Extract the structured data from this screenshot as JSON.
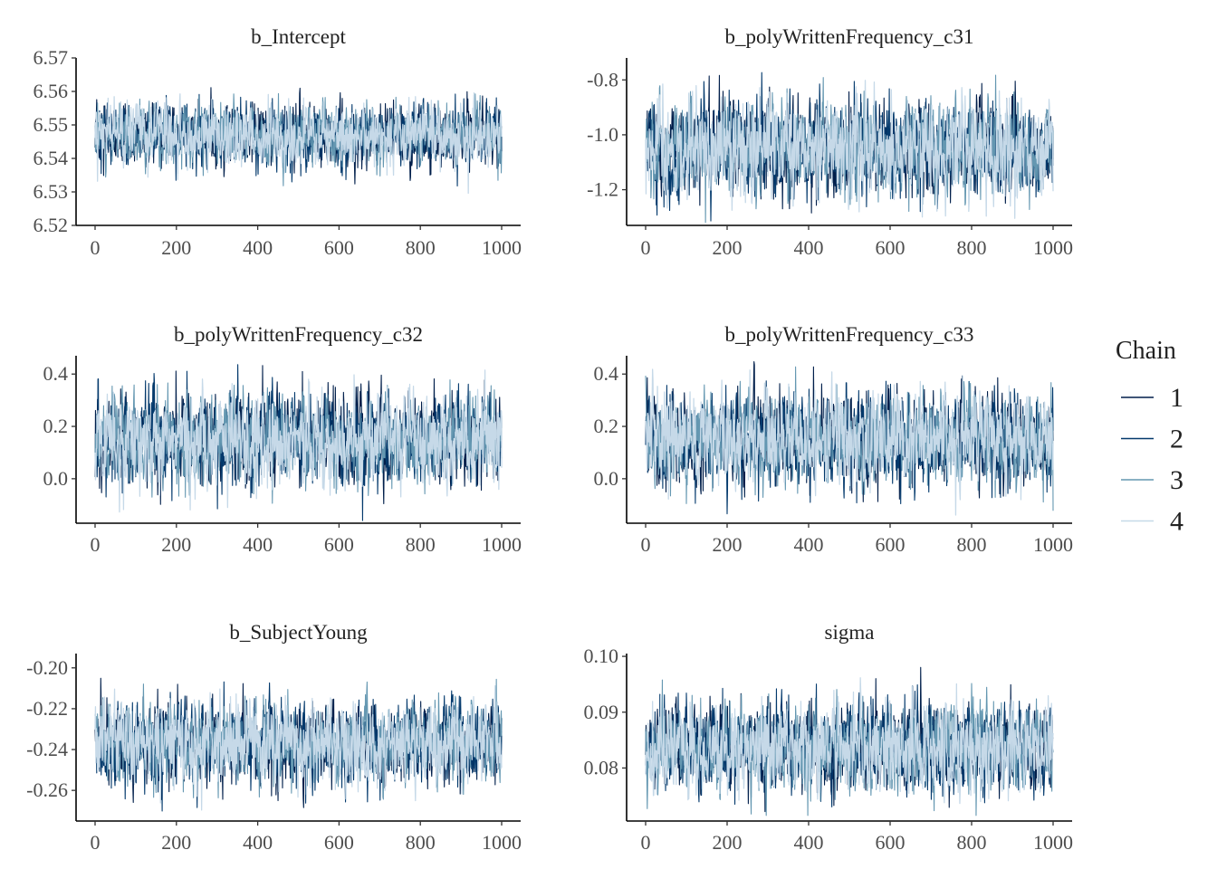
{
  "chart_data": {
    "type": "line",
    "chains": [
      {
        "name": "1",
        "color": "#011f4b"
      },
      {
        "name": "2",
        "color": "#03396c"
      },
      {
        "name": "3",
        "color": "#6497b1"
      },
      {
        "name": "4",
        "color": "#c6d9e8"
      }
    ],
    "legend": {
      "title": "Chain",
      "position": "right"
    },
    "iterations": 1000,
    "grid": false,
    "panels": [
      {
        "title": "b_Intercept",
        "xlim": [
          0,
          1000
        ],
        "ylim": [
          6.52,
          6.57
        ],
        "xticks": [
          "0",
          "200",
          "400",
          "600",
          "800",
          "1000"
        ],
        "yticks": [
          "6.52",
          "6.53",
          "6.54",
          "6.55",
          "6.56",
          "6.57"
        ],
        "mean": 6.547,
        "sd": 0.0045,
        "min": 6.522,
        "max": 6.569
      },
      {
        "title": "b_polyWrittenFrequency_c31",
        "xlim": [
          0,
          1000
        ],
        "ylim": [
          -1.33,
          -0.72
        ],
        "xticks": [
          "0",
          "200",
          "400",
          "600",
          "800",
          "1000"
        ],
        "yticks": [
          "-1.2",
          "-1.0",
          "-0.8"
        ],
        "mean": -1.05,
        "sd": 0.085,
        "min": -1.34,
        "max": -0.73
      },
      {
        "title": "b_polyWrittenFrequency_c32",
        "xlim": [
          0,
          1000
        ],
        "ylim": [
          -0.17,
          0.47
        ],
        "xticks": [
          "0",
          "200",
          "400",
          "600",
          "800",
          "1000"
        ],
        "yticks": [
          "0.0",
          "0.2",
          "0.4"
        ],
        "mean": 0.15,
        "sd": 0.085,
        "min": -0.16,
        "max": 0.46
      },
      {
        "title": "b_polyWrittenFrequency_c33",
        "xlim": [
          0,
          1000
        ],
        "ylim": [
          -0.17,
          0.47
        ],
        "xticks": [
          "0",
          "200",
          "400",
          "600",
          "800",
          "1000"
        ],
        "yticks": [
          "0.0",
          "0.2",
          "0.4"
        ],
        "mean": 0.15,
        "sd": 0.085,
        "min": -0.15,
        "max": 0.45
      },
      {
        "title": "b_SubjectYoung",
        "xlim": [
          0,
          1000
        ],
        "ylim": [
          -0.275,
          -0.193
        ],
        "xticks": [
          "0",
          "200",
          "400",
          "600",
          "800",
          "1000"
        ],
        "yticks": [
          "-0.26",
          "-0.24",
          "-0.22",
          "-0.20"
        ],
        "mean": -0.237,
        "sd": 0.0095,
        "min": -0.275,
        "max": -0.196
      },
      {
        "title": "sigma",
        "xlim": [
          0,
          1000
        ],
        "ylim": [
          0.0705,
          0.1005
        ],
        "xticks": [
          "0",
          "200",
          "400",
          "600",
          "800",
          "1000"
        ],
        "yticks": [
          "0.08",
          "0.09",
          "0.10"
        ],
        "mean": 0.0835,
        "sd": 0.0038,
        "min": 0.0715,
        "max": 0.099
      }
    ]
  }
}
